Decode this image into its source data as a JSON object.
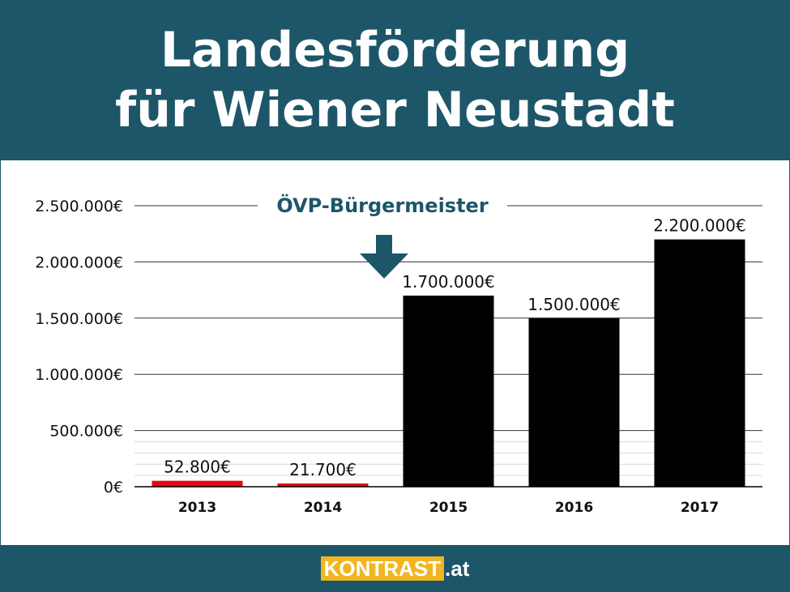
{
  "header": {
    "title_line1": "Landesförderung",
    "title_line2": "für Wiener Neustadt"
  },
  "annotation": {
    "label": "ÖVP-Bürgermeister",
    "color": "#1d5669"
  },
  "footer": {
    "brand_box": "KONTRAST",
    "brand_tld": ".at",
    "brand_color": "#f1b522"
  },
  "colors": {
    "header_bg": "#1d5669",
    "bar_default": "#000000",
    "bar_highlight": "#e30613"
  },
  "chart_data": {
    "type": "bar",
    "title": "Landesförderung für Wiener Neustadt",
    "categories": [
      "2013",
      "2014",
      "2015",
      "2016",
      "2017"
    ],
    "values": [
      52800,
      21700,
      1700000,
      1500000,
      2200000
    ],
    "value_labels": [
      "52.800€",
      "21.700€",
      "1.700.000€",
      "1.500.000€",
      "2.200.000€"
    ],
    "highlight": [
      true,
      true,
      false,
      false,
      false
    ],
    "yticks": [
      0,
      500000,
      1000000,
      1500000,
      2000000,
      2500000
    ],
    "ytick_labels": [
      "0€",
      "500.000€",
      "1.000.000€",
      "1.500.000€",
      "2.000.000€",
      "2.500.000€"
    ],
    "ylim": [
      0,
      2500000
    ],
    "grid": true,
    "xlabel": "",
    "ylabel": ""
  }
}
